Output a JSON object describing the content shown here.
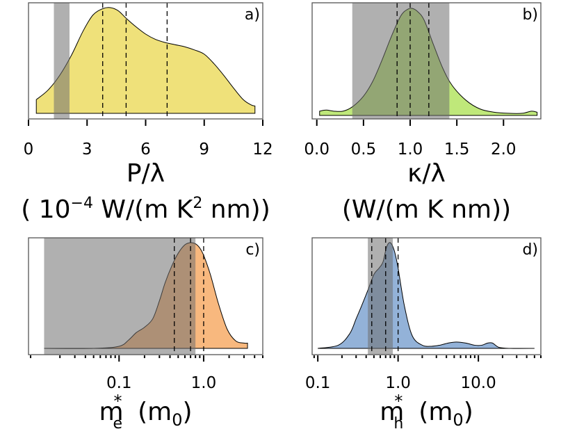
{
  "chart_data": [
    {
      "panel": "a)",
      "type": "area",
      "x_scale": "linear",
      "xlim": [
        0,
        12
      ],
      "xticks": [
        0,
        3,
        6,
        9,
        12
      ],
      "xtick_labels": [
        "0",
        "3",
        "6",
        "9",
        "12"
      ],
      "xlabel_line1": "P/λ",
      "xlabel_line2_parts": [
        "( 10",
        "−4",
        "  W/(m K",
        "2",
        " nm))"
      ],
      "fill_color": "#efe17a",
      "shade_range": [
        1.3,
        2.1
      ],
      "dashed_lines": [
        3.8,
        5.0,
        7.1
      ],
      "density": {
        "x": [
          0.4,
          1.0,
          1.6,
          2.2,
          2.8,
          3.3,
          3.8,
          4.2,
          4.6,
          5.0,
          5.5,
          6.0,
          6.5,
          7.0,
          7.5,
          8.0,
          8.5,
          9.0,
          9.5,
          10.0,
          10.5,
          11.0,
          11.4,
          11.6
        ],
        "y": [
          0.13,
          0.22,
          0.36,
          0.55,
          0.78,
          0.93,
          0.99,
          1.0,
          0.97,
          0.9,
          0.82,
          0.75,
          0.7,
          0.67,
          0.65,
          0.63,
          0.6,
          0.56,
          0.47,
          0.36,
          0.24,
          0.13,
          0.08,
          0.07
        ]
      }
    },
    {
      "panel": "b)",
      "type": "area",
      "x_scale": "linear",
      "xlim": [
        -0.05,
        2.4
      ],
      "xticks": [
        0.0,
        0.5,
        1.0,
        1.5,
        2.0
      ],
      "xtick_labels": [
        "0.0",
        "0.5",
        "1.0",
        "1.5",
        "2.0"
      ],
      "xlabel_line1": "κ/λ",
      "xlabel_line2": "(W/(m K nm))",
      "fill_color": "#bfe87a",
      "shade_range": [
        0.38,
        1.42
      ],
      "dashed_lines": [
        0.86,
        1.0,
        1.2
      ],
      "density": {
        "x": [
          0.03,
          0.1,
          0.18,
          0.28,
          0.38,
          0.5,
          0.6,
          0.7,
          0.8,
          0.9,
          0.97,
          1.02,
          1.08,
          1.15,
          1.25,
          1.35,
          1.45,
          1.6,
          1.75,
          1.9,
          2.05,
          2.2,
          2.3,
          2.36
        ],
        "y": [
          0.04,
          0.05,
          0.04,
          0.04,
          0.08,
          0.18,
          0.32,
          0.52,
          0.74,
          0.93,
          0.99,
          1.0,
          0.97,
          0.89,
          0.66,
          0.44,
          0.28,
          0.14,
          0.06,
          0.03,
          0.02,
          0.02,
          0.04,
          0.03
        ]
      }
    },
    {
      "panel": "c)",
      "type": "area",
      "x_scale": "log",
      "xlim": [
        0.0085,
        5.0
      ],
      "xticks": [
        0.1,
        1.0
      ],
      "xtick_labels": [
        "0.1",
        "1.0"
      ],
      "xlabel_main": "m",
      "xlabel_sup": "*",
      "xlabel_sub": "e",
      "xlabel_unit_main": "(m",
      "xlabel_unit_sub": "0",
      "xlabel_unit_close": ")",
      "fill_color": "#f8b87e",
      "shade_range": [
        0.013,
        0.8
      ],
      "dashed_lines": [
        0.45,
        0.7,
        1.0
      ],
      "density": {
        "x": [
          0.013,
          0.05,
          0.1,
          0.13,
          0.16,
          0.2,
          0.25,
          0.3,
          0.35,
          0.42,
          0.5,
          0.6,
          0.7,
          0.8,
          0.9,
          1.0,
          1.2,
          1.5,
          1.9,
          2.4,
          3.0,
          3.3
        ],
        "y": [
          0.0,
          0.0,
          0.02,
          0.08,
          0.15,
          0.2,
          0.28,
          0.45,
          0.62,
          0.78,
          0.9,
          0.98,
          1.0,
          0.99,
          0.95,
          0.88,
          0.7,
          0.42,
          0.18,
          0.07,
          0.05,
          0.05
        ]
      }
    },
    {
      "panel": "d)",
      "type": "area",
      "x_scale": "log",
      "xlim": [
        0.085,
        60.0
      ],
      "xticks": [
        0.1,
        1.0,
        10.0
      ],
      "xtick_labels": [
        "0.1",
        "1.0",
        "10.0"
      ],
      "xlabel_main": "m",
      "xlabel_sup": "*",
      "xlabel_sub": "h",
      "xlabel_unit_main": "(m",
      "xlabel_unit_sub": "0",
      "xlabel_unit_close": ")",
      "fill_color": "#93b2d8",
      "shade_range": [
        0.42,
        0.86
      ],
      "dashed_lines": [
        0.47,
        0.7,
        1.0
      ],
      "density": {
        "x": [
          0.1,
          0.18,
          0.25,
          0.3,
          0.35,
          0.42,
          0.5,
          0.58,
          0.65,
          0.72,
          0.8,
          0.9,
          1.0,
          1.2,
          1.5,
          2.0,
          2.6,
          3.3,
          4.2,
          5.3,
          7.0,
          9.0,
          11.0,
          13.0,
          15.0,
          18.0,
          25.0,
          50.0
        ],
        "y": [
          0.0,
          0.03,
          0.14,
          0.28,
          0.4,
          0.55,
          0.7,
          0.76,
          0.82,
          0.96,
          1.0,
          0.92,
          0.76,
          0.4,
          0.12,
          0.03,
          0.02,
          0.03,
          0.05,
          0.06,
          0.05,
          0.03,
          0.03,
          0.05,
          0.05,
          0.01,
          0.0,
          0.0
        ]
      }
    }
  ]
}
